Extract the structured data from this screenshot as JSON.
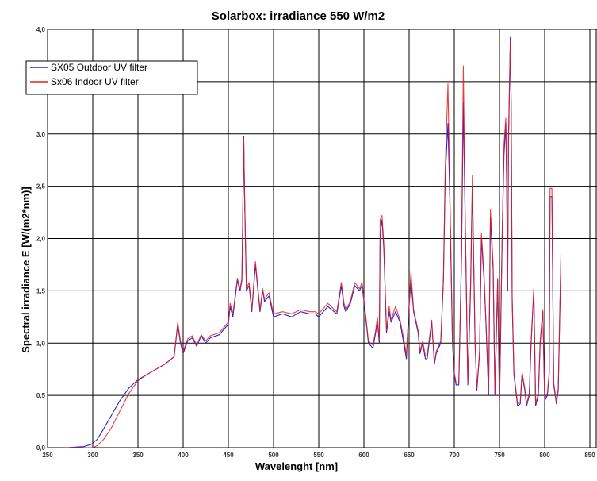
{
  "chart_data": {
    "type": "line",
    "title": "Solarbox: irradiance 550 W/m2",
    "xlabel": "Wavelenght [nm]",
    "ylabel": "Spectral irradiance E [W/(m2*nm)]",
    "xlim": [
      250,
      850
    ],
    "ylim": [
      0,
      4
    ],
    "x_ticks": [
      "250",
      "300",
      "350",
      "400",
      "450",
      "500",
      "550",
      "600",
      "650",
      "700",
      "750",
      "800",
      "850"
    ],
    "y_ticks": [
      "0,0",
      "0,5",
      "1,0",
      "1,5",
      "2,0",
      "2,5",
      "3,0",
      "3,5",
      "4,0"
    ],
    "grid": true,
    "legend_position": "top-left",
    "colors": {
      "SX05 Outdoor UV filter": "#2222dd",
      "Sx06 Indoor UV filter": "#e02020",
      "grid": "#000000"
    },
    "series": [
      {
        "name": "SX05 Outdoor UV filter",
        "x": [
          270,
          290,
          298,
          305,
          312,
          320,
          330,
          340,
          350,
          360,
          370,
          380,
          390,
          394,
          397,
          400,
          405,
          410,
          415,
          420,
          425,
          430,
          440,
          450,
          452,
          455,
          460,
          463,
          465,
          466,
          467,
          468,
          470,
          473,
          476,
          480,
          485,
          488,
          490,
          495,
          500,
          510,
          520,
          530,
          540,
          546,
          550,
          560,
          570,
          575,
          578,
          580,
          585,
          590,
          595,
          598,
          600,
          605,
          610,
          613,
          615,
          617,
          618,
          620,
          622,
          625,
          628,
          630,
          635,
          640,
          645,
          647,
          650,
          652,
          655,
          660,
          662,
          665,
          668,
          670,
          675,
          678,
          680,
          685,
          688,
          690,
          693,
          695,
          698,
          700,
          702,
          705,
          708,
          710,
          712,
          715,
          718,
          720,
          723,
          725,
          728,
          730,
          733,
          735,
          738,
          740,
          743,
          745,
          748,
          750,
          753,
          755,
          757,
          758,
          759,
          760,
          762,
          763,
          764,
          766,
          768,
          770,
          773,
          775,
          778,
          780,
          783,
          785,
          788,
          790,
          793,
          795,
          798,
          800,
          803,
          805,
          806,
          808,
          810,
          813,
          815,
          818
        ],
        "y": [
          0.0,
          0.01,
          0.03,
          0.08,
          0.18,
          0.3,
          0.45,
          0.57,
          0.65,
          0.7,
          0.75,
          0.8,
          0.87,
          1.18,
          1.0,
          0.9,
          1.02,
          1.05,
          0.97,
          1.07,
          1.0,
          1.05,
          1.08,
          1.18,
          1.35,
          1.25,
          1.6,
          1.5,
          1.6,
          2.2,
          2.98,
          2.4,
          1.5,
          1.55,
          1.3,
          1.75,
          1.3,
          1.5,
          1.4,
          1.45,
          1.25,
          1.28,
          1.25,
          1.3,
          1.28,
          1.28,
          1.25,
          1.35,
          1.28,
          1.55,
          1.35,
          1.3,
          1.38,
          1.55,
          1.5,
          1.55,
          1.4,
          1.0,
          0.95,
          1.1,
          1.2,
          1.0,
          2.05,
          2.18,
          1.9,
          1.1,
          1.3,
          1.2,
          1.3,
          1.2,
          0.95,
          0.85,
          1.35,
          1.6,
          1.3,
          1.1,
          0.9,
          1.0,
          0.85,
          0.85,
          1.2,
          0.8,
          0.9,
          1.0,
          1.6,
          2.6,
          3.1,
          2.4,
          1.0,
          0.7,
          0.6,
          0.6,
          1.8,
          3.3,
          2.2,
          0.6,
          1.5,
          2.5,
          1.0,
          0.55,
          0.9,
          2.0,
          1.6,
          1.2,
          0.5,
          2.2,
          1.7,
          0.5,
          1.6,
          0.4,
          2.0,
          2.8,
          3.1,
          2.5,
          1.5,
          2.9,
          3.93,
          3.2,
          1.4,
          0.7,
          0.55,
          0.4,
          0.42,
          0.7,
          0.55,
          0.4,
          0.5,
          1.0,
          1.5,
          0.4,
          0.5,
          1.0,
          1.3,
          0.45,
          0.5,
          0.7,
          2.4,
          2.4,
          0.6,
          0.42,
          0.55,
          1.8
        ]
      },
      {
        "name": "Sx06 Indoor UV filter",
        "x": [
          270,
          290,
          300,
          305,
          312,
          320,
          330,
          340,
          350,
          360,
          370,
          380,
          390,
          394,
          397,
          400,
          405,
          410,
          415,
          420,
          425,
          430,
          440,
          450,
          452,
          455,
          460,
          463,
          465,
          466,
          467,
          468,
          470,
          473,
          476,
          480,
          485,
          488,
          490,
          495,
          500,
          510,
          520,
          530,
          540,
          546,
          550,
          560,
          570,
          575,
          578,
          580,
          585,
          590,
          595,
          598,
          600,
          605,
          610,
          613,
          615,
          617,
          618,
          620,
          622,
          625,
          628,
          630,
          635,
          640,
          645,
          647,
          650,
          652,
          655,
          660,
          662,
          665,
          668,
          670,
          675,
          678,
          680,
          685,
          688,
          690,
          693,
          695,
          698,
          700,
          702,
          705,
          708,
          710,
          712,
          715,
          718,
          720,
          723,
          725,
          728,
          730,
          733,
          735,
          738,
          740,
          743,
          745,
          748,
          750,
          753,
          755,
          757,
          758,
          759,
          760,
          762,
          763,
          764,
          766,
          768,
          770,
          773,
          775,
          778,
          780,
          783,
          785,
          788,
          790,
          793,
          795,
          798,
          800,
          803,
          805,
          806,
          808,
          810,
          813,
          815,
          818
        ],
        "y": [
          0.0,
          0.0,
          0.0,
          0.02,
          0.08,
          0.18,
          0.35,
          0.52,
          0.64,
          0.7,
          0.75,
          0.8,
          0.87,
          1.2,
          1.02,
          0.92,
          1.04,
          1.07,
          0.98,
          1.08,
          1.02,
          1.07,
          1.1,
          1.2,
          1.38,
          1.28,
          1.62,
          1.52,
          1.62,
          2.22,
          2.95,
          2.42,
          1.52,
          1.58,
          1.32,
          1.78,
          1.32,
          1.52,
          1.42,
          1.48,
          1.28,
          1.3,
          1.28,
          1.32,
          1.3,
          1.3,
          1.28,
          1.38,
          1.3,
          1.58,
          1.38,
          1.32,
          1.4,
          1.58,
          1.52,
          1.58,
          1.42,
          1.02,
          0.98,
          1.12,
          1.25,
          1.02,
          2.18,
          2.22,
          1.95,
          1.12,
          1.35,
          1.22,
          1.35,
          1.22,
          1.0,
          0.88,
          1.38,
          1.68,
          1.32,
          1.12,
          0.92,
          1.02,
          0.88,
          0.88,
          1.22,
          0.82,
          0.92,
          1.02,
          1.62,
          2.68,
          3.48,
          2.5,
          1.02,
          0.72,
          0.62,
          0.62,
          1.85,
          3.65,
          2.25,
          0.62,
          1.55,
          2.6,
          1.02,
          0.57,
          0.92,
          2.05,
          1.65,
          1.22,
          0.52,
          2.28,
          1.75,
          0.52,
          1.62,
          0.42,
          2.05,
          2.9,
          3.15,
          2.55,
          1.55,
          3.0,
          3.88,
          3.25,
          1.45,
          0.72,
          0.57,
          0.42,
          0.44,
          0.72,
          0.57,
          0.42,
          0.52,
          1.02,
          1.52,
          0.42,
          0.52,
          1.02,
          1.32,
          0.47,
          0.52,
          0.72,
          2.48,
          2.48,
          0.62,
          0.44,
          0.57,
          1.85
        ]
      }
    ]
  }
}
